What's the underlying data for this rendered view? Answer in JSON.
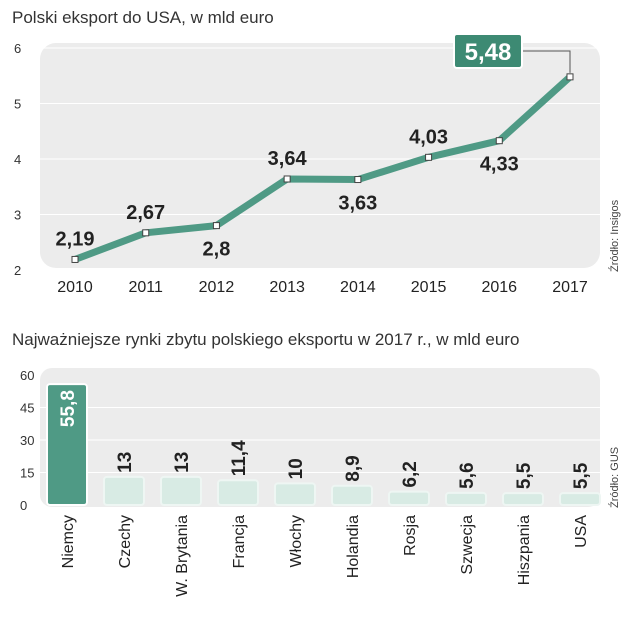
{
  "chart_data": [
    {
      "type": "line",
      "title": "Polski eksport do USA, w mld euro",
      "source": "Źródło: Insigos",
      "x": [
        "2010",
        "2011",
        "2012",
        "2013",
        "2014",
        "2015",
        "2016",
        "2017"
      ],
      "y": [
        2.19,
        2.67,
        2.8,
        3.64,
        3.63,
        4.03,
        4.33,
        5.48
      ],
      "data_labels": [
        "2,19",
        "2,67",
        "2,8",
        "3,64",
        "3,63",
        "4,03",
        "4,33",
        "5,48"
      ],
      "yticks": [
        2,
        3,
        4,
        5,
        6
      ],
      "ylim": [
        2,
        6
      ],
      "highlight_label": "5,48",
      "grid": true,
      "colors": {
        "line": "#4f9a85",
        "highlight_box": "#3d8a73",
        "panel": "#ececec"
      }
    },
    {
      "type": "bar",
      "title": "Najważniejsze rynki zbytu polskiego eksportu w 2017 r., w mld euro",
      "source": "Źródło: GUS",
      "categories": [
        "Niemcy",
        "Czechy",
        "W. Brytania",
        "Francja",
        "Włochy",
        "Holandia",
        "Rosja",
        "Szwecja",
        "Hiszpania",
        "USA"
      ],
      "values": [
        55.8,
        13,
        13,
        11.4,
        10,
        8.9,
        6.2,
        5.6,
        5.5,
        5.5
      ],
      "data_labels": [
        "55,8",
        "13",
        "13",
        "11,4",
        "10",
        "8,9",
        "6,2",
        "5,6",
        "5,5",
        "5,5"
      ],
      "yticks": [
        0,
        15,
        30,
        45,
        60
      ],
      "ylim": [
        0,
        60
      ],
      "grid": true,
      "colors": {
        "highlight": "#4f9a85",
        "bar": "#d8ebe4",
        "bar_border": "#eef6f3",
        "panel": "#ececec"
      }
    }
  ]
}
